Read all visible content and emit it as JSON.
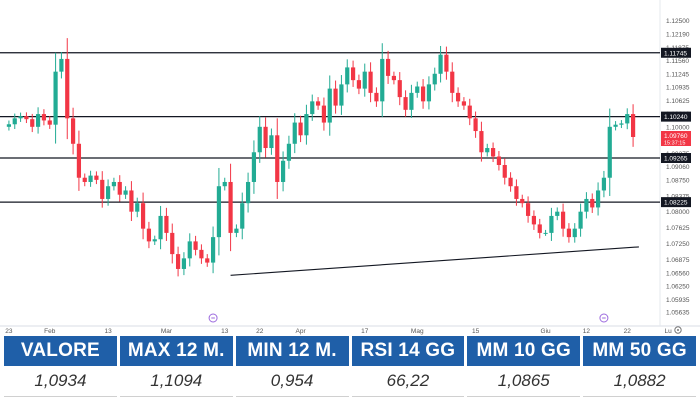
{
  "chart_data": {
    "type": "candlestick",
    "y_ticks": [
      "1.12500",
      "1.12190",
      "1.11875",
      "1.11560",
      "1.11245",
      "1.10935",
      "1.10625",
      "1.10310",
      "1.10000",
      "1.09690",
      "1.09375",
      "1.09060",
      "1.08750",
      "1.08375",
      "1.08000",
      "1.07625",
      "1.07250",
      "1.06875",
      "1.06560",
      "1.06250",
      "1.05935",
      "1.05635"
    ],
    "x_ticks": [
      {
        "label": "23",
        "i": 0
      },
      {
        "label": "Feb",
        "i": 7
      },
      {
        "label": "13",
        "i": 17
      },
      {
        "label": "Mar",
        "i": 27
      },
      {
        "label": "13",
        "i": 37
      },
      {
        "label": "22",
        "i": 43
      },
      {
        "label": "Apr",
        "i": 50
      },
      {
        "label": "17",
        "i": 61
      },
      {
        "label": "Mag",
        "i": 70
      },
      {
        "label": "15",
        "i": 80
      },
      {
        "label": "Giu",
        "i": 92
      },
      {
        "label": "12",
        "i": 99
      },
      {
        "label": "22",
        "i": 106
      },
      {
        "label": "Lu",
        "i": 113
      }
    ],
    "event_markers": [
      {
        "i": 35
      },
      {
        "i": 102
      }
    ],
    "levels": [
      {
        "value": 1.11745,
        "label": "1.11745"
      },
      {
        "value": 1.1024,
        "label": "1.10240"
      },
      {
        "value": 1.09265,
        "label": "1.09265"
      },
      {
        "value": 1.08225,
        "label": "1.08225"
      }
    ],
    "current_price": {
      "value": 1.0976,
      "label": "1.09760",
      "countdown": "15:37:15"
    },
    "trendline": {
      "from": {
        "i": 38,
        "value": 1.065
      },
      "to": {
        "i": 108,
        "value": 1.0717
      }
    },
    "closes": [
      1.1006,
      1.102,
      1.1025,
      1.1018,
      1.1,
      1.103,
      1.1015,
      1.1005,
      1.113,
      1.116,
      1.102,
      1.096,
      1.088,
      1.087,
      1.0885,
      1.0875,
      1.083,
      1.086,
      1.087,
      1.084,
      1.085,
      1.08,
      1.082,
      1.076,
      1.073,
      1.0735,
      1.079,
      1.075,
      1.07,
      1.0665,
      1.069,
      1.073,
      1.071,
      1.069,
      1.068,
      1.074,
      1.086,
      1.087,
      1.075,
      1.076,
      1.082,
      1.087,
      1.094,
      1.1,
      1.095,
      1.098,
      1.087,
      1.092,
      1.096,
      1.101,
      1.098,
      1.103,
      1.106,
      1.105,
      1.101,
      1.109,
      1.105,
      1.11,
      1.114,
      1.111,
      1.109,
      1.113,
      1.108,
      1.106,
      1.116,
      1.112,
      1.111,
      1.107,
      1.104,
      1.108,
      1.1095,
      1.106,
      1.11,
      1.1125,
      1.117,
      1.113,
      1.108,
      1.106,
      1.105,
      1.102,
      1.099,
      1.094,
      1.095,
      1.093,
      1.091,
      1.088,
      1.086,
      1.083,
      1.082,
      1.079,
      1.077,
      1.075,
      1.075,
      1.079,
      1.08,
      1.076,
      1.074,
      1.076,
      1.08,
      1.083,
      1.081,
      1.085,
      1.088,
      1.1,
      1.1005,
      1.1008,
      1.103,
      1.0976
    ]
  },
  "stats": [
    {
      "label": "VALORE",
      "value": "1,0934"
    },
    {
      "label": "MAX 12 M.",
      "value": "1,1094"
    },
    {
      "label": "MIN 12 M.",
      "value": "0,954"
    },
    {
      "label": "RSI 14 GG",
      "value": "66,22"
    },
    {
      "label": "MM 10 GG",
      "value": "1,0865"
    },
    {
      "label": "MM 50 GG",
      "value": "1,0882"
    }
  ],
  "colors": {
    "bull": "#22ab94",
    "bear": "#f23645",
    "level": "#131722",
    "grid": "#f0f3fa",
    "event": "#9c6ade",
    "header_bg": "#1f5fa8"
  }
}
